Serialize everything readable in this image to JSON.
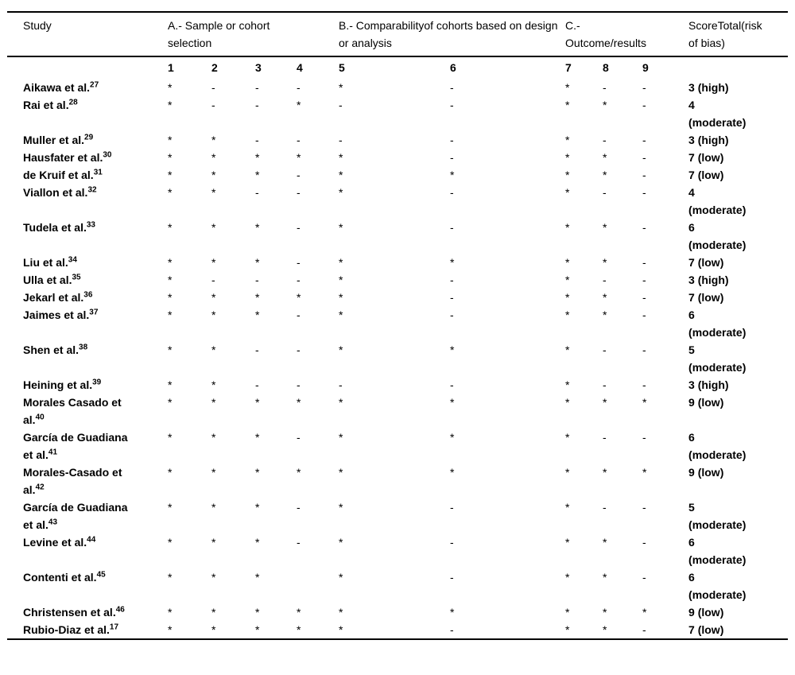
{
  "table": {
    "headers": {
      "study": "Study",
      "groups": [
        {
          "label": "A.- Sample or cohort selection",
          "span": 4
        },
        {
          "label": "B.- Comparabilityof cohorts based on design or analysis",
          "span": 2
        },
        {
          "label": "C.- Outcome/results",
          "span": 3
        }
      ],
      "score": "ScoreTotal(risk of bias)",
      "item_numbers": [
        "1",
        "2",
        "3",
        "4",
        "5",
        "6",
        "7",
        "8",
        "9"
      ]
    },
    "rows": [
      {
        "study": "Aikawa et al.",
        "ref": "27",
        "items": [
          "*",
          "-",
          "-",
          "-",
          "*",
          "-",
          "*",
          "-",
          "-"
        ],
        "score": "3 (high)"
      },
      {
        "study": "Rai et al.",
        "ref": "28",
        "items": [
          "*",
          "-",
          "-",
          "*",
          "-",
          "-",
          "*",
          "*",
          "-"
        ],
        "score": "4 (moderate)"
      },
      {
        "study": "Muller et al.",
        "ref": "29",
        "items": [
          "*",
          "*",
          "-",
          "-",
          "-",
          "-",
          "*",
          "-",
          "-"
        ],
        "score": "3 (high)"
      },
      {
        "study": "Hausfater et al.",
        "ref": "30",
        "items": [
          "*",
          "*",
          "*",
          "*",
          "*",
          "-",
          "*",
          "*",
          "-"
        ],
        "score": "7 (low)"
      },
      {
        "study": "de Kruif et al.",
        "ref": "31",
        "items": [
          "*",
          "*",
          "*",
          "-",
          "*",
          "*",
          "*",
          "*",
          "-"
        ],
        "score": "7 (low)"
      },
      {
        "study": "Viallon et al.",
        "ref": "32",
        "items": [
          "*",
          "*",
          "-",
          "-",
          "*",
          "-",
          "*",
          "-",
          "-"
        ],
        "score": "4 (moderate)"
      },
      {
        "study": "Tudela et al.",
        "ref": "33",
        "items": [
          "*",
          "*",
          "*",
          "-",
          "*",
          "-",
          "*",
          "*",
          "-"
        ],
        "score": "6 (moderate)"
      },
      {
        "study": "Liu et al.",
        "ref": "34",
        "items": [
          "*",
          "*",
          "*",
          "-",
          "*",
          "*",
          "*",
          "*",
          "-"
        ],
        "score": "7 (low)"
      },
      {
        "study": "Ulla et al.",
        "ref": "35",
        "items": [
          "*",
          "-",
          "-",
          "-",
          "*",
          "-",
          "*",
          "-",
          "-"
        ],
        "score": "3 (high)"
      },
      {
        "study": "Jekarl et al.",
        "ref": "36",
        "items": [
          "*",
          "*",
          "*",
          "*",
          "*",
          "-",
          "*",
          "*",
          "-"
        ],
        "score": "7 (low)"
      },
      {
        "study": "Jaimes et al.",
        "ref": "37",
        "items": [
          "*",
          "*",
          "*",
          "-",
          "*",
          "-",
          "*",
          "*",
          "-"
        ],
        "score": "6 (moderate)"
      },
      {
        "study": "Shen et al.",
        "ref": "38",
        "items": [
          "*",
          "*",
          "-",
          "-",
          "*",
          "*",
          "*",
          "-",
          "-"
        ],
        "score": "5 (moderate)"
      },
      {
        "study": "Heining et al.",
        "ref": "39",
        "items": [
          "*",
          "*",
          "-",
          "-",
          "-",
          "-",
          "*",
          "-",
          "-"
        ],
        "score": "3 (high)"
      },
      {
        "study": "Morales Casado et al.",
        "ref": "40",
        "items": [
          "*",
          "*",
          "*",
          "*",
          "*",
          "*",
          "*",
          "*",
          "*"
        ],
        "score": "9 (low)"
      },
      {
        "study": "García de Guadiana et al.",
        "ref": "41",
        "items": [
          "*",
          "*",
          "*",
          "-",
          "*",
          "*",
          "*",
          "-",
          "-"
        ],
        "score": "6 (moderate)"
      },
      {
        "study": "Morales-Casado et al.",
        "ref": "42",
        "items": [
          "*",
          "*",
          "*",
          "*",
          "*",
          "*",
          "*",
          "*",
          "*"
        ],
        "score": "9 (low)"
      },
      {
        "study": "García de Guadiana et al.",
        "ref": "43",
        "items": [
          "*",
          "*",
          "*",
          "-",
          "*",
          "-",
          "*",
          "-",
          "-"
        ],
        "score": "5 (moderate)"
      },
      {
        "study": "Levine et al.",
        "ref": "44",
        "items": [
          "*",
          "*",
          "*",
          "-",
          "*",
          "-",
          "*",
          "*",
          "-"
        ],
        "score": "6 (moderate)"
      },
      {
        "study": "Contenti et al.",
        "ref": "45",
        "items": [
          "*",
          "*",
          "*",
          "",
          "*",
          "-",
          "*",
          "*",
          "-"
        ],
        "score": "6 (moderate)"
      },
      {
        "study": "Christensen et al.",
        "ref": "46",
        "items": [
          "*",
          "*",
          "*",
          "*",
          "*",
          "*",
          "*",
          "*",
          "*"
        ],
        "score": "9 (low)"
      },
      {
        "study": "Rubio-Diaz et al.",
        "ref": "17",
        "items": [
          "*",
          "*",
          "*",
          "*",
          "*",
          "-",
          "*",
          "*",
          "-"
        ],
        "score": "7 (low)"
      }
    ]
  }
}
